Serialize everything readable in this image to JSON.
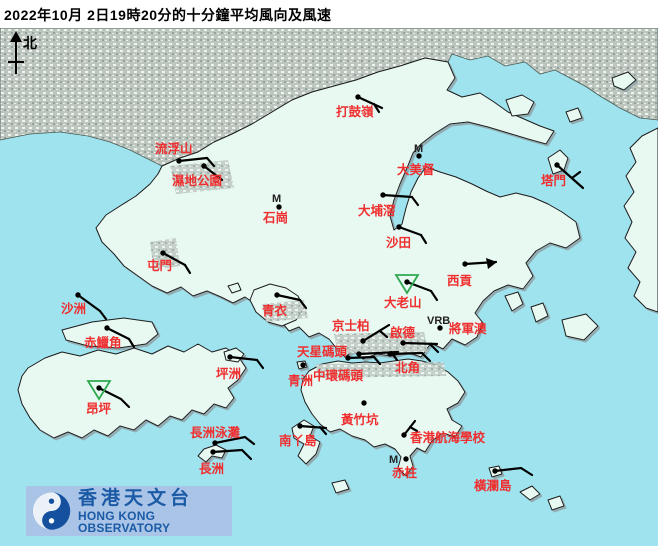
{
  "title": "2022年10月  2日19時20分的十分鐘平均風向及風速",
  "north_label": "北",
  "colors": {
    "water": "#9fe3ef",
    "land": "#e8f9f2",
    "urban": "#bcc6bf",
    "coast": "#1a1a1a",
    "shadow": "#8fa3a6",
    "label": "#ef2f2f",
    "barb": "#000000",
    "marker": "#222222",
    "triangle": "#2fa84f",
    "logo_bg": "#a9c4e7",
    "logo_blue": "#1b5aa5"
  },
  "logo": {
    "chinese": "香港天文台",
    "english": "HONG KONG OBSERVATORY"
  },
  "stations": [
    {
      "name": "打鼓嶺",
      "dot": [
        358,
        97
      ],
      "label": [
        336,
        116
      ],
      "lines": [
        [
          [
            358,
            97
          ],
          [
            382,
            108
          ]
        ],
        [
          [
            374,
            104
          ],
          [
            379,
            112
          ]
        ]
      ]
    },
    {
      "name": "流浮山",
      "dot": [
        179,
        161
      ],
      "label": [
        155,
        153
      ],
      "lines": [
        [
          [
            179,
            161
          ],
          [
            207,
            158
          ]
        ],
        [
          [
            207,
            158
          ],
          [
            214,
            166
          ]
        ]
      ]
    },
    {
      "name": "濕地公園",
      "dot": [
        204,
        166
      ],
      "label": [
        172,
        185
      ],
      "lines": [
        [
          [
            204,
            166
          ],
          [
            222,
            180
          ]
        ]
      ]
    },
    {
      "name": "石崗",
      "dot": [
        279,
        207
      ],
      "m": [
        272,
        202
      ],
      "label": [
        263,
        222
      ],
      "lines": []
    },
    {
      "name": "大美督",
      "dot": [
        419,
        156
      ],
      "m": [
        414,
        152
      ],
      "label": [
        397,
        174
      ],
      "lines": []
    },
    {
      "name": "塔門",
      "dot": [
        557,
        165
      ],
      "label": [
        541,
        185
      ],
      "lines": [
        [
          [
            557,
            165
          ],
          [
            583,
            188
          ]
        ],
        [
          [
            572,
            178
          ],
          [
            580,
            172
          ]
        ]
      ]
    },
    {
      "name": "大埔滘",
      "dot": [
        383,
        195
      ],
      "label": [
        358,
        215
      ],
      "lines": [
        [
          [
            383,
            195
          ],
          [
            412,
            197
          ]
        ],
        [
          [
            412,
            197
          ],
          [
            418,
            205
          ]
        ]
      ]
    },
    {
      "name": "沙田",
      "dot": [
        399,
        227
      ],
      "label": [
        386,
        247
      ],
      "lines": [
        [
          [
            399,
            227
          ],
          [
            421,
            235
          ]
        ],
        [
          [
            421,
            235
          ],
          [
            426,
            243
          ]
        ]
      ]
    },
    {
      "name": "屯門",
      "dot": [
        163,
        253
      ],
      "label": [
        147,
        270
      ],
      "lines": [
        [
          [
            163,
            253
          ],
          [
            185,
            265
          ]
        ],
        [
          [
            185,
            265
          ],
          [
            190,
            273
          ]
        ]
      ]
    },
    {
      "name": "沙洲",
      "dot": [
        78,
        295
      ],
      "label": [
        61,
        313
      ],
      "lines": [
        [
          [
            78,
            295
          ],
          [
            100,
            311
          ],
          [
            106,
            319
          ]
        ]
      ]
    },
    {
      "name": "赤鱲角",
      "dot": [
        107,
        328
      ],
      "label": [
        84,
        347
      ],
      "lines": [
        [
          [
            107,
            328
          ],
          [
            129,
            339
          ]
        ],
        [
          [
            129,
            339
          ],
          [
            134,
            347
          ]
        ]
      ]
    },
    {
      "name": "青衣",
      "dot": [
        277,
        295
      ],
      "label": [
        262,
        315
      ],
      "lines": [
        [
          [
            277,
            295
          ],
          [
            300,
            300
          ]
        ],
        [
          [
            300,
            300
          ],
          [
            306,
            308
          ]
        ]
      ]
    },
    {
      "name": "坪洲",
      "dot": [
        230,
        357
      ],
      "label": [
        216,
        378
      ],
      "lines": [
        [
          [
            230,
            357
          ],
          [
            257,
            360
          ]
        ],
        [
          [
            257,
            360
          ],
          [
            263,
            368
          ]
        ]
      ]
    },
    {
      "name": "大老山",
      "dot": [
        407,
        282
      ],
      "tri": true,
      "label": [
        384,
        307
      ],
      "lines": [
        [
          [
            407,
            282
          ],
          [
            431,
            291
          ]
        ],
        [
          [
            431,
            291
          ],
          [
            437,
            300
          ]
        ]
      ]
    },
    {
      "name": "西貢",
      "dot": [
        465,
        264
      ],
      "label": [
        447,
        285
      ],
      "lines": [
        [
          [
            465,
            264
          ],
          [
            496,
            262
          ]
        ]
      ],
      "flag": [
        [
          497,
          262
        ],
        [
          486,
          258
        ],
        [
          488,
          269
        ]
      ]
    },
    {
      "name": "將軍澳",
      "dot": [
        440,
        328
      ],
      "vrb": [
        427,
        324
      ],
      "label": [
        449,
        333
      ],
      "lines": []
    },
    {
      "name": "京士柏",
      "dot": [
        363,
        341
      ],
      "label": [
        332,
        330
      ],
      "lines": [
        [
          [
            363,
            341
          ],
          [
            389,
            325
          ]
        ],
        [
          [
            380,
            331
          ],
          [
            387,
            337
          ]
        ]
      ]
    },
    {
      "name": "啟德",
      "dot": [
        403,
        343
      ],
      "label": [
        390,
        337
      ],
      "lines": [
        [
          [
            403,
            343
          ],
          [
            437,
            344
          ]
        ],
        [
          [
            430,
            344
          ],
          [
            438,
            352
          ]
        ]
      ]
    },
    {
      "name": "天星碼頭",
      "dot": [
        359,
        354
      ],
      "label": [
        297,
        356
      ],
      "lines": [
        [
          [
            359,
            354
          ],
          [
            398,
            352
          ]
        ],
        [
          [
            391,
            352
          ],
          [
            397,
            360
          ]
        ]
      ]
    },
    {
      "name": "中環碼頭",
      "dot": [
        348,
        358
      ],
      "label": [
        313,
        380
      ],
      "lines": [
        [
          [
            348,
            358
          ],
          [
            374,
            357
          ]
        ],
        [
          [
            374,
            357
          ],
          [
            380,
            364
          ]
        ]
      ]
    },
    {
      "name": "北角",
      "dot": [
        390,
        354
      ],
      "label": [
        395,
        372
      ],
      "lines": [
        [
          [
            390,
            354
          ],
          [
            422,
            353
          ]
        ],
        [
          [
            422,
            353
          ],
          [
            430,
            361
          ]
        ]
      ]
    },
    {
      "name": "青洲",
      "dot": [
        303,
        365
      ],
      "label": [
        288,
        385
      ],
      "lines": []
    },
    {
      "name": "黃竹坑",
      "dot": [
        364,
        403
      ],
      "label": [
        341,
        424
      ],
      "lines": []
    },
    {
      "name": "昂坪",
      "dot": [
        99,
        388
      ],
      "tri": true,
      "label": [
        86,
        413
      ],
      "lines": [
        [
          [
            99,
            388
          ],
          [
            121,
            399
          ],
          [
            129,
            407
          ]
        ]
      ]
    },
    {
      "name": "長洲泳灘",
      "dot": [
        215,
        443
      ],
      "label": [
        190,
        437
      ],
      "lines": [
        [
          [
            215,
            443
          ],
          [
            245,
            437
          ],
          [
            254,
            444
          ]
        ]
      ]
    },
    {
      "name": "長洲",
      "dot": [
        213,
        452
      ],
      "label": [
        199,
        473
      ],
      "lines": [
        [
          [
            213,
            452
          ],
          [
            242,
            450
          ],
          [
            251,
            459
          ]
        ]
      ]
    },
    {
      "name": "南丫島",
      "dot": [
        300,
        426
      ],
      "label": [
        279,
        445
      ],
      "lines": [
        [
          [
            300,
            426
          ],
          [
            326,
            428
          ]
        ],
        [
          [
            320,
            427
          ],
          [
            326,
            434
          ]
        ]
      ]
    },
    {
      "name": "香港航海學校",
      "dot": [
        404,
        435
      ],
      "label": [
        410,
        442
      ],
      "lines": [
        [
          [
            404,
            435
          ],
          [
            415,
            421
          ]
        ],
        [
          [
            410,
            427
          ],
          [
            417,
            431
          ]
        ]
      ]
    },
    {
      "name": "赤柱",
      "dot": [
        406,
        459
      ],
      "m": [
        389,
        463
      ],
      "label": [
        392,
        477
      ],
      "lines": []
    },
    {
      "name": "橫瀾島",
      "dot": [
        495,
        471
      ],
      "label": [
        474,
        490
      ],
      "lines": [
        [
          [
            495,
            471
          ],
          [
            521,
            468
          ],
          [
            532,
            475
          ]
        ]
      ]
    }
  ]
}
